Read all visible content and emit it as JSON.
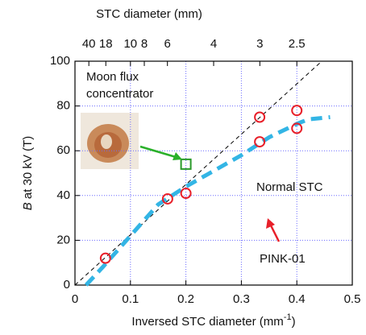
{
  "chart_data": {
    "type": "scatter",
    "x_label": {
      "text": "Inversed STC diameter (mm",
      "superscript": "-1",
      "close": ")"
    },
    "y_label": {
      "symbol": "B",
      "text": " at 30 kV (T)"
    },
    "x2_label": "STC diameter (mm)",
    "xlim": [
      0,
      0.5
    ],
    "ylim": [
      0,
      100
    ],
    "xticks": [
      0,
      0.1,
      0.2,
      0.3,
      0.4,
      0.5
    ],
    "yticks": [
      0,
      20,
      40,
      60,
      80,
      100
    ],
    "x2ticks": [
      {
        "value": 0.025,
        "label": "40"
      },
      {
        "value": 0.0556,
        "label": "18"
      },
      {
        "value": 0.1,
        "label": "10"
      },
      {
        "value": 0.125,
        "label": "8"
      },
      {
        "value": 0.1667,
        "label": "6"
      },
      {
        "value": 0.25,
        "label": "4"
      },
      {
        "value": 0.3333,
        "label": "3"
      },
      {
        "value": 0.4,
        "label": "2.5"
      }
    ],
    "grid": true,
    "series": [
      {
        "name": "Normal STC",
        "mode": "circle",
        "color": "#e8202a",
        "x": [
          0.055,
          0.167,
          0.2,
          0.333,
          0.333,
          0.4,
          0.4
        ],
        "values": [
          12,
          38.5,
          41,
          75,
          64,
          78,
          70
        ]
      },
      {
        "mode": "square",
        "color": "#2a9a2a",
        "x": [
          0.2
        ],
        "values": [
          54
        ]
      },
      {
        "mode": "thin-dash",
        "color": "#000000",
        "x": [
          0,
          0.445
        ],
        "values": [
          0,
          100
        ]
      },
      {
        "mode": "thick-dash",
        "color": "#33b5e5",
        "x": [
          0.02,
          0.05,
          0.1,
          0.15,
          0.2,
          0.25,
          0.3,
          0.35,
          0.4,
          0.42,
          0.46
        ],
        "values": [
          0,
          8,
          22,
          36,
          44,
          51,
          58,
          66,
          72,
          74,
          75
        ]
      }
    ],
    "annotations": [
      "Moon flux",
      "concentrator",
      "PINK-01"
    ]
  }
}
